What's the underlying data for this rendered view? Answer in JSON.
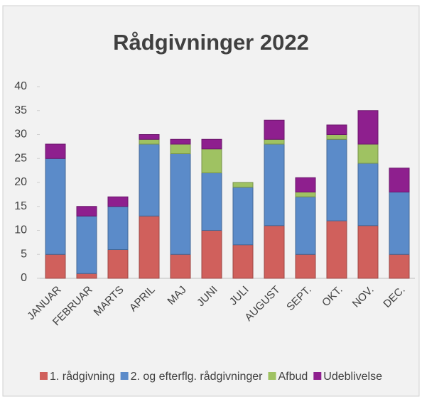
{
  "chart_data": {
    "type": "stacked_bar",
    "title": "Rådgivninger 2022",
    "categories": [
      "JANUAR",
      "FEBRUAR",
      "MARTS",
      "APRIL",
      "MAJ",
      "JUNI",
      "JULI",
      "AUGUST",
      "SEPT.",
      "OKT.",
      "NOV.",
      "DEC."
    ],
    "series": [
      {
        "name": "1. rådgivning",
        "color": "#d0605c",
        "values": [
          5,
          1,
          6,
          13,
          5,
          10,
          7,
          11,
          5,
          12,
          11,
          5
        ]
      },
      {
        "name": "2. og efterflg. rådgivninger",
        "color": "#5b8bc9",
        "values": [
          20,
          12,
          9,
          15,
          21,
          12,
          12,
          17,
          12,
          17,
          13,
          13
        ]
      },
      {
        "name": "Afbud",
        "color": "#9fc262",
        "values": [
          0,
          0,
          0,
          1,
          2,
          5,
          1,
          1,
          1,
          1,
          4,
          0
        ]
      },
      {
        "name": "Udeblivelse",
        "color": "#8e1f8e",
        "values": [
          3,
          2,
          2,
          1,
          1,
          2,
          0,
          4,
          3,
          2,
          7,
          5
        ]
      }
    ],
    "ylim": [
      0,
      40
    ],
    "yticks": [
      0,
      5,
      10,
      15,
      20,
      25,
      30,
      35,
      40
    ],
    "legend": "bottom"
  }
}
